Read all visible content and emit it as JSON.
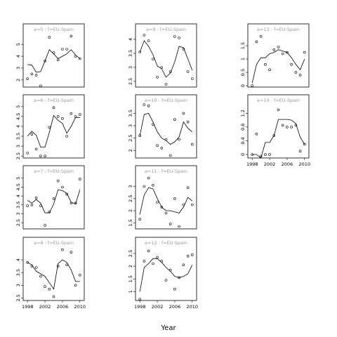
{
  "chart_data": {
    "type": "scatter",
    "title": "",
    "xlabel": "Year",
    "ylabel": "",
    "x_ticks": [
      1998,
      2002,
      2006,
      2010
    ],
    "xlim": [
      1997,
      2011
    ],
    "panels": [
      {
        "label": "a=5 : f=EU-Spain",
        "ylim": [
          1.4,
          5.9
        ],
        "yticks": [
          2,
          3,
          4,
          5
        ],
        "points": [
          [
            1998,
            2.1
          ],
          [
            1999,
            2.5
          ],
          [
            2000,
            2.4
          ],
          [
            2001,
            1.5
          ],
          [
            2002,
            3.6
          ],
          [
            2003,
            5.6
          ],
          [
            2004,
            4.3
          ],
          [
            2005,
            3.7
          ],
          [
            2006,
            4.6
          ],
          [
            2007,
            4.6
          ],
          [
            2008,
            5.7
          ],
          [
            2009,
            4.0
          ],
          [
            2010,
            3.8
          ]
        ],
        "fit": [
          [
            1998,
            3.3
          ],
          [
            1999,
            3.25
          ],
          [
            2000,
            2.65
          ],
          [
            2001,
            2.7
          ],
          [
            2002,
            3.6
          ],
          [
            2003,
            4.55
          ],
          [
            2004,
            4.2
          ],
          [
            2005,
            3.8
          ],
          [
            2006,
            4.0
          ],
          [
            2007,
            4.2
          ],
          [
            2008,
            4.55
          ],
          [
            2009,
            4.1
          ],
          [
            2010,
            3.8
          ]
        ]
      },
      {
        "label": "a=6 : f=EU-Spain",
        "ylim": [
          2.4,
          5.1
        ],
        "yticks": [
          2.5,
          3.0,
          3.5,
          4.0,
          4.5,
          5.0
        ],
        "points": [
          [
            1998,
            2.65
          ],
          [
            1999,
            3.6
          ],
          [
            2000,
            2.85
          ],
          [
            2001,
            2.5
          ],
          [
            2002,
            2.5
          ],
          [
            2003,
            3.95
          ],
          [
            2004,
            4.95
          ],
          [
            2005,
            4.5
          ],
          [
            2006,
            4.4
          ],
          [
            2007,
            3.5
          ],
          [
            2008,
            4.65
          ],
          [
            2009,
            4.5
          ],
          [
            2010,
            4.6
          ]
        ],
        "fit": [
          [
            1998,
            3.5
          ],
          [
            1999,
            3.75
          ],
          [
            2000,
            3.55
          ],
          [
            2001,
            2.95
          ],
          [
            2002,
            2.95
          ],
          [
            2003,
            3.7
          ],
          [
            2004,
            4.55
          ],
          [
            2005,
            4.3
          ],
          [
            2006,
            4.15
          ],
          [
            2007,
            3.65
          ],
          [
            2008,
            4.0
          ],
          [
            2009,
            4.45
          ],
          [
            2010,
            4.45
          ]
        ]
      },
      {
        "label": "a=7 : f=EU-Spain",
        "ylim": [
          2.15,
          5.15
        ],
        "yticks": [
          2.5,
          3.0,
          3.5,
          4.0,
          4.5,
          5.0
        ],
        "points": [
          [
            1998,
            3.45
          ],
          [
            1999,
            3.5
          ],
          [
            2000,
            3.9
          ],
          [
            2001,
            3.45
          ],
          [
            2002,
            2.35
          ],
          [
            2003,
            3.1
          ],
          [
            2004,
            3.85
          ],
          [
            2005,
            4.85
          ],
          [
            2006,
            4.5
          ],
          [
            2007,
            4.1
          ],
          [
            2008,
            3.6
          ],
          [
            2009,
            3.6
          ],
          [
            2010,
            4.95
          ]
        ],
        "fit": [
          [
            1998,
            3.75
          ],
          [
            1999,
            3.6
          ],
          [
            2000,
            3.8
          ],
          [
            2001,
            3.6
          ],
          [
            2002,
            3.05
          ],
          [
            2003,
            3.05
          ],
          [
            2004,
            3.55
          ],
          [
            2005,
            4.35
          ],
          [
            2006,
            4.3
          ],
          [
            2007,
            4.15
          ],
          [
            2008,
            3.65
          ],
          [
            2009,
            3.55
          ],
          [
            2010,
            4.35
          ]
        ]
      },
      {
        "label": "a=8 : f=EU-Spain",
        "ylim": [
          2.4,
          4.5
        ],
        "yticks": [
          2.5,
          3.0,
          3.5,
          4.0
        ],
        "points": [
          [
            1998,
            3.9
          ],
          [
            1999,
            3.75
          ],
          [
            2000,
            3.7
          ],
          [
            2001,
            3.35
          ],
          [
            2002,
            2.95
          ],
          [
            2003,
            2.85
          ],
          [
            2004,
            2.55
          ],
          [
            2005,
            3.75
          ],
          [
            2006,
            4.4
          ],
          [
            2007,
            3.8
          ],
          [
            2008,
            4.3
          ],
          [
            2009,
            3.0
          ],
          [
            2010,
            3.4
          ]
        ],
        "fit": [
          [
            1998,
            3.9
          ],
          [
            1999,
            3.8
          ],
          [
            2000,
            3.55
          ],
          [
            2001,
            3.45
          ],
          [
            2002,
            3.35
          ],
          [
            2003,
            3.1
          ],
          [
            2004,
            2.85
          ],
          [
            2005,
            3.85
          ],
          [
            2006,
            4.0
          ],
          [
            2007,
            3.9
          ],
          [
            2008,
            3.6
          ],
          [
            2009,
            3.15
          ],
          [
            2010,
            3.15
          ]
        ]
      },
      {
        "label": "a=9 : f=EU-Spain",
        "ylim": [
          2.3,
          4.2
        ],
        "yticks": [
          2.5,
          3.0,
          3.5,
          4.0
        ],
        "points": [
          [
            1998,
            3.55
          ],
          [
            1999,
            4.15
          ],
          [
            2000,
            3.95
          ],
          [
            2001,
            3.3
          ],
          [
            2002,
            2.65
          ],
          [
            2003,
            3.0
          ],
          [
            2004,
            2.4
          ],
          [
            2005,
            2.85
          ],
          [
            2006,
            4.1
          ],
          [
            2007,
            4.05
          ],
          [
            2008,
            3.65
          ],
          [
            2009,
            2.85
          ],
          [
            2010,
            2.6
          ]
        ],
        "fit": [
          [
            1998,
            3.55
          ],
          [
            1999,
            3.95
          ],
          [
            2000,
            3.75
          ],
          [
            2001,
            3.45
          ],
          [
            2002,
            3.05
          ],
          [
            2003,
            2.95
          ],
          [
            2004,
            2.65
          ],
          [
            2005,
            2.8
          ],
          [
            2006,
            3.2
          ],
          [
            2007,
            3.75
          ],
          [
            2008,
            3.7
          ],
          [
            2009,
            3.3
          ],
          [
            2010,
            2.9
          ]
        ]
      },
      {
        "label": "a=10 : f=EU-Spain",
        "ylim": [
          1.7,
          3.85
        ],
        "yticks": [
          2.0,
          2.5,
          3.0,
          3.5
        ],
        "points": [
          [
            1998,
            2.6
          ],
          [
            1999,
            3.85
          ],
          [
            2000,
            3.8
          ],
          [
            2001,
            3.05
          ],
          [
            2002,
            2.2
          ],
          [
            2003,
            2.1
          ],
          [
            2004,
            2.45
          ],
          [
            2005,
            1.8
          ],
          [
            2006,
            3.25
          ],
          [
            2007,
            2.45
          ],
          [
            2008,
            3.5
          ],
          [
            2009,
            3.15
          ],
          [
            2010,
            2.25
          ]
        ],
        "fit": [
          [
            1998,
            2.6
          ],
          [
            1999,
            3.45
          ],
          [
            2000,
            3.5
          ],
          [
            2001,
            3.15
          ],
          [
            2002,
            2.75
          ],
          [
            2003,
            2.5
          ],
          [
            2004,
            2.4
          ],
          [
            2005,
            2.25
          ],
          [
            2006,
            2.35
          ],
          [
            2007,
            2.55
          ],
          [
            2008,
            3.15
          ],
          [
            2009,
            2.9
          ],
          [
            2010,
            2.75
          ]
        ]
      },
      {
        "label": "a=11 : f=EU-Spain",
        "ylim": [
          1.25,
          3.45
        ],
        "yticks": [
          1.5,
          2.0,
          2.5,
          3.0
        ],
        "points": [
          [
            1998,
            1.65
          ],
          [
            1999,
            3.0
          ],
          [
            2000,
            3.35
          ],
          [
            2001,
            3.05
          ],
          [
            2002,
            2.35
          ],
          [
            2003,
            2.15
          ],
          [
            2004,
            1.9
          ],
          [
            2005,
            1.45
          ],
          [
            2006,
            2.5
          ],
          [
            2007,
            1.35
          ],
          [
            2008,
            2.25
          ],
          [
            2009,
            2.95
          ],
          [
            2010,
            2.25
          ]
        ],
        "fit": [
          [
            1998,
            1.85
          ],
          [
            1999,
            2.65
          ],
          [
            2000,
            2.95
          ],
          [
            2001,
            2.9
          ],
          [
            2002,
            2.5
          ],
          [
            2003,
            2.15
          ],
          [
            2004,
            2.0
          ],
          [
            2005,
            2.0
          ],
          [
            2006,
            1.95
          ],
          [
            2007,
            1.9
          ],
          [
            2008,
            2.15
          ],
          [
            2009,
            2.55
          ],
          [
            2010,
            2.4
          ]
        ]
      },
      {
        "label": "a=12 : f=EU-Spain",
        "ylim": [
          0.65,
          2.75
        ],
        "yticks": [
          1.0,
          1.5,
          2.0,
          2.5
        ],
        "points": [
          [
            1998,
            0.7
          ],
          [
            1999,
            2.2
          ],
          [
            2000,
            2.6
          ],
          [
            2001,
            2.1
          ],
          [
            2002,
            2.35
          ],
          [
            2003,
            2.2
          ],
          [
            2004,
            1.45
          ],
          [
            2005,
            1.85
          ],
          [
            2006,
            1.1
          ],
          [
            2007,
            1.55
          ],
          [
            2008,
            2.05
          ],
          [
            2009,
            2.4
          ],
          [
            2010,
            2.45
          ]
        ],
        "fit": [
          [
            1998,
            1.0
          ],
          [
            1999,
            1.95
          ],
          [
            2000,
            2.1
          ],
          [
            2001,
            2.3
          ],
          [
            2002,
            2.3
          ],
          [
            2003,
            2.15
          ],
          [
            2004,
            1.95
          ],
          [
            2005,
            1.8
          ],
          [
            2006,
            1.6
          ],
          [
            2007,
            1.55
          ],
          [
            2008,
            1.6
          ],
          [
            2009,
            1.7
          ],
          [
            2010,
            2.05
          ]
        ]
      },
      {
        "label": "a=13 : f=EU-Spain",
        "ylim": [
          -0.05,
          1.95
        ],
        "yticks": [
          0.0,
          0.5,
          1.0,
          1.5
        ],
        "points": [
          [
            1998,
            0.0
          ],
          [
            1999,
            1.65
          ],
          [
            2000,
            1.85
          ],
          [
            2001,
            0.8
          ],
          [
            2002,
            0.6
          ],
          [
            2003,
            1.35
          ],
          [
            2004,
            1.45
          ],
          [
            2005,
            1.2
          ],
          [
            2006,
            1.25
          ],
          [
            2007,
            0.8
          ],
          [
            2008,
            0.5
          ],
          [
            2009,
            0.4
          ],
          [
            2010,
            1.25
          ]
        ],
        "fit": [
          [
            1998,
            0.1
          ],
          [
            1999,
            0.8
          ],
          [
            2000,
            1.05
          ],
          [
            2001,
            1.05
          ],
          [
            2002,
            1.2
          ],
          [
            2003,
            1.25
          ],
          [
            2004,
            1.35
          ],
          [
            2005,
            1.3
          ],
          [
            2006,
            1.25
          ],
          [
            2007,
            1.05
          ],
          [
            2008,
            0.8
          ],
          [
            2009,
            0.6
          ],
          [
            2010,
            1.0
          ]
        ]
      },
      {
        "label": "a=14 : f=EU-Spain",
        "ylim": [
          -0.1,
          1.45
        ],
        "yticks": [
          0.0,
          0.4,
          0.8,
          1.2
        ],
        "points": [
          [
            1998,
            0.0
          ],
          [
            1999,
            0.6
          ],
          [
            2000,
            -0.05
          ],
          [
            2001,
            0.0
          ],
          [
            2002,
            0.0
          ],
          [
            2003,
            0.55
          ],
          [
            2004,
            1.3
          ],
          [
            2005,
            0.85
          ],
          [
            2006,
            0.8
          ],
          [
            2007,
            0.8
          ],
          [
            2008,
            0.85
          ],
          [
            2009,
            0.1
          ],
          [
            2010,
            0.3
          ]
        ],
        "fit": [
          [
            1998,
            0.0
          ],
          [
            1999,
            0.0
          ],
          [
            2000,
            -0.1
          ],
          [
            2001,
            0.35
          ],
          [
            2002,
            0.35
          ],
          [
            2003,
            0.55
          ],
          [
            2004,
            1.02
          ],
          [
            2005,
            1.02
          ],
          [
            2006,
            1.02
          ],
          [
            2007,
            1.0
          ],
          [
            2008,
            0.9
          ],
          [
            2009,
            0.5
          ],
          [
            2010,
            0.3
          ]
        ]
      }
    ]
  }
}
